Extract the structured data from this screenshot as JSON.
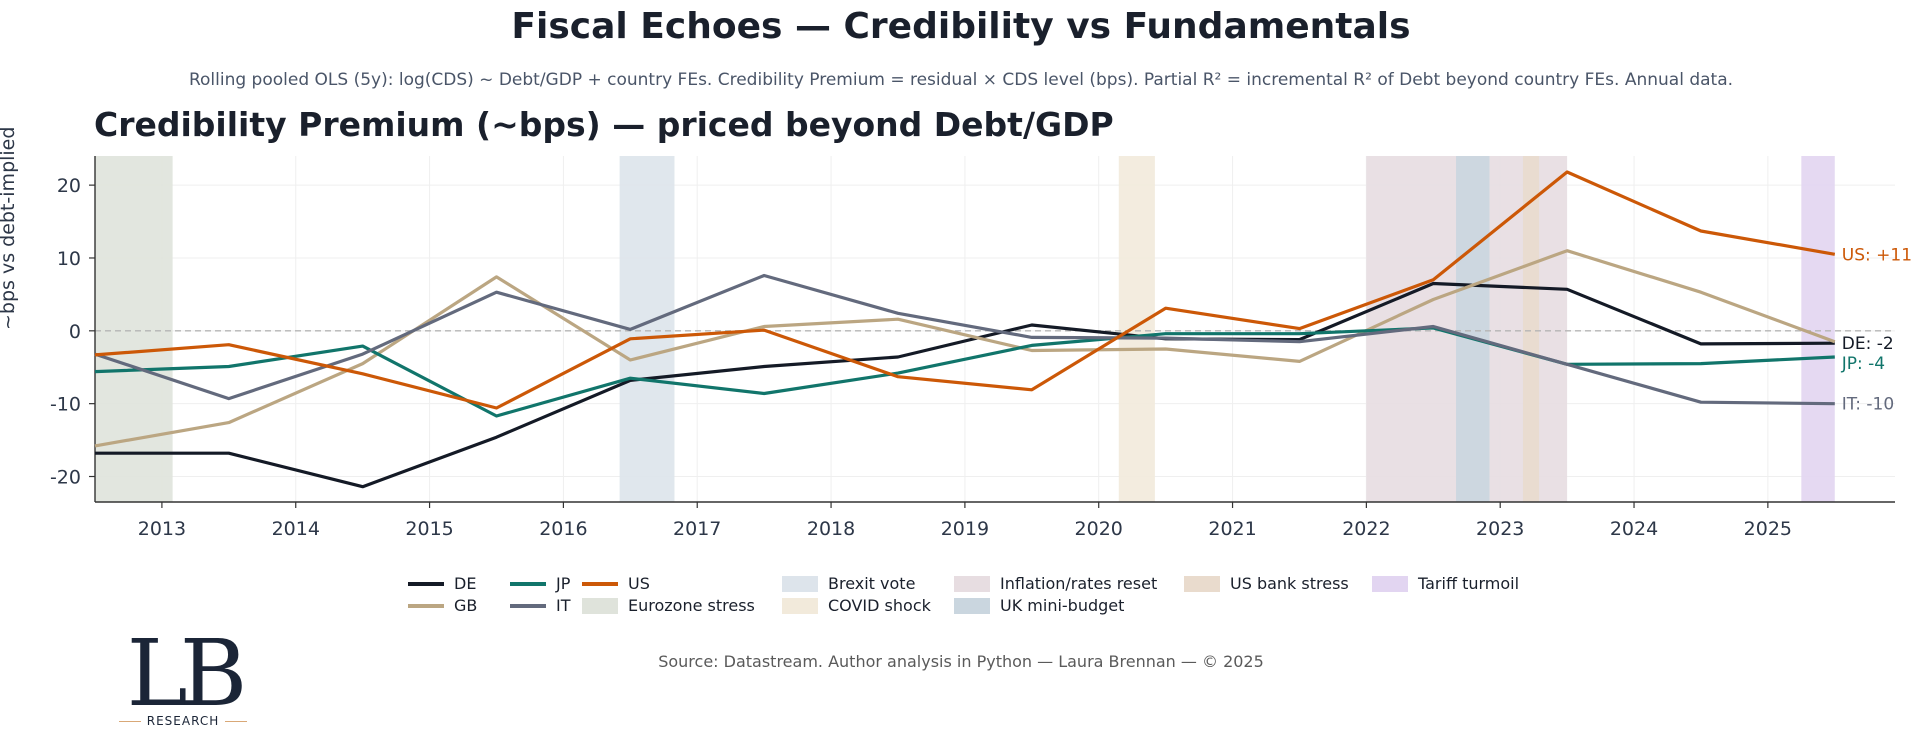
{
  "title": "Fiscal Echoes — Credibility vs Fundamentals",
  "subtitle": "Rolling pooled OLS (5y):  log(CDS) ~ Debt/GDP + country FEs.  Credibility Premium = residual × CDS level (bps).  Partial R² = incremental R² of Debt beyond country FEs.  Annual data.",
  "source": "Source: Datastream. Author analysis in Python — Laura Brennan — © 2025",
  "logo": {
    "letters": "LB",
    "tagline": "RESEARCH"
  },
  "chart_data": {
    "type": "line",
    "title": "Credibility Premium (~bps) — priced beyond Debt/GDP",
    "xlabel": "",
    "ylabel": "~bps vs debt-implied",
    "xlim": [
      2012.5,
      2025.95
    ],
    "ylim": [
      -23.5,
      24
    ],
    "xticks": [
      2013,
      2014,
      2015,
      2016,
      2017,
      2018,
      2019,
      2020,
      2021,
      2022,
      2023,
      2024,
      2025
    ],
    "yticks": [
      -20,
      -10,
      0,
      10,
      20
    ],
    "x": [
      2012.5,
      2013.5,
      2014.5,
      2015.5,
      2016.5,
      2017.5,
      2018.5,
      2019.5,
      2020.5,
      2021.5,
      2022.5,
      2023.5,
      2024.5,
      2025.5
    ],
    "series": [
      {
        "name": "DE",
        "color": "#141a26",
        "values": [
          -16.8,
          -16.8,
          -21.4,
          -14.6,
          -6.8,
          -4.9,
          -3.6,
          0.8,
          -1.1,
          -1.2,
          6.5,
          5.7,
          -1.8,
          -1.7
        ],
        "end_label": "DE: -2"
      },
      {
        "name": "GB",
        "color": "#bba682",
        "values": [
          -15.8,
          -12.6,
          -4.5,
          7.4,
          -4.0,
          0.6,
          1.6,
          -2.7,
          -2.5,
          -4.2,
          4.3,
          11.0,
          5.3,
          -1.5
        ],
        "end_label": ""
      },
      {
        "name": "JP",
        "color": "#11756b",
        "values": [
          -5.6,
          -4.9,
          -2.1,
          -11.7,
          -6.5,
          -8.6,
          -5.8,
          -2.0,
          -0.4,
          -0.4,
          0.4,
          -4.6,
          -4.5,
          -3.6
        ],
        "end_label": "JP: -4"
      },
      {
        "name": "IT",
        "color": "#636a7d",
        "values": [
          -3.2,
          -9.3,
          -3.2,
          5.3,
          0.2,
          7.6,
          2.4,
          -0.9,
          -1.0,
          -1.5,
          0.6,
          -4.6,
          -9.8,
          -10.0
        ],
        "end_label": "IT: -10"
      },
      {
        "name": "US",
        "color": "#cc5807",
        "values": [
          -3.3,
          -1.9,
          -5.9,
          -10.6,
          -1.1,
          0.1,
          -6.3,
          -8.1,
          3.1,
          0.3,
          7.0,
          21.8,
          13.7,
          10.5
        ],
        "end_label": "US: +11"
      }
    ],
    "shaded_events": [
      {
        "name": "Eurozone stress",
        "start": 2012.5,
        "end": 2013.08,
        "color": "#dfe3db"
      },
      {
        "name": "Brexit vote",
        "start": 2016.42,
        "end": 2016.83,
        "color": "#dde4eb"
      },
      {
        "name": "COVID shock",
        "start": 2020.15,
        "end": 2020.42,
        "color": "#f2eadb"
      },
      {
        "name": "Inflation/rates reset",
        "start": 2022.0,
        "end": 2023.5,
        "color": "#e7dde1"
      },
      {
        "name": "UK mini-budget",
        "start": 2022.67,
        "end": 2022.92,
        "color": "#cad6df"
      },
      {
        "name": "US bank stress",
        "start": 2023.17,
        "end": 2023.29,
        "color": "#e9dbcd"
      },
      {
        "name": "Tariff turmoil",
        "start": 2025.25,
        "end": 2025.5,
        "color": "#e2d5f1"
      }
    ],
    "legend_location": "bottom-center"
  }
}
